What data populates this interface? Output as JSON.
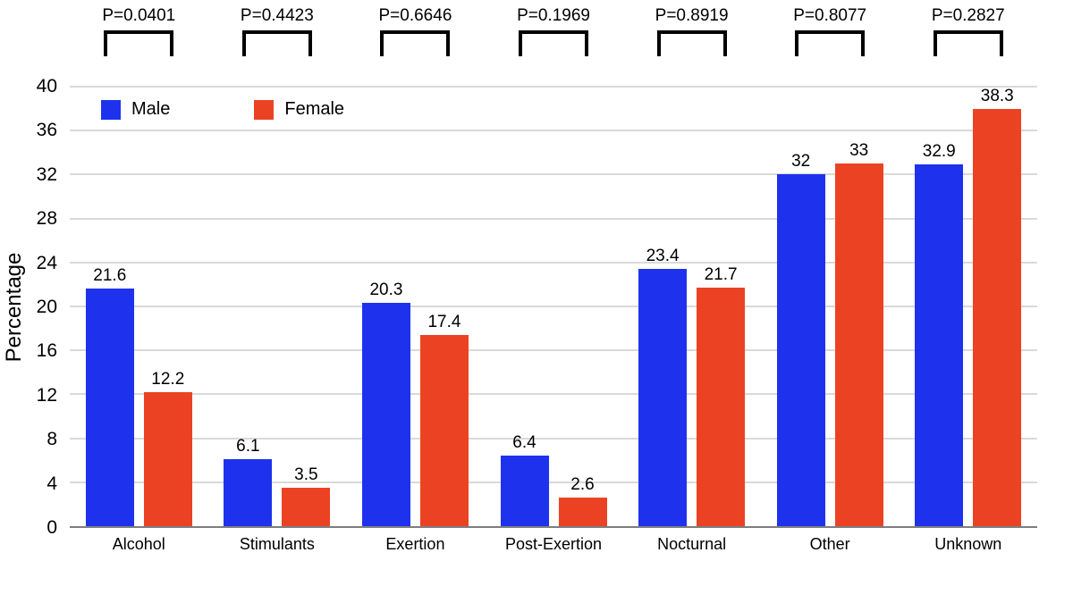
{
  "chart_data": {
    "type": "bar",
    "title": "",
    "ylabel": "Percentage",
    "xlabel": "",
    "ylim": [
      0,
      40
    ],
    "yticks": [
      0,
      4,
      8,
      12,
      16,
      20,
      24,
      28,
      32,
      36,
      40
    ],
    "grid": true,
    "legend_position": "top-left inside plot area",
    "categories": [
      "Alcohol",
      "Stimulants",
      "Exertion",
      "Post-Exertion",
      "Nocturnal",
      "Other",
      "Unknown"
    ],
    "series": [
      {
        "name": "Male",
        "color": "#1E32EE",
        "values": [
          21.6,
          6.1,
          20.3,
          6.4,
          23.4,
          32,
          32.9
        ],
        "value_labels": [
          "21.6",
          "6.1",
          "20.3",
          "6.4",
          "23.4",
          "32",
          "32.9"
        ]
      },
      {
        "name": "Female",
        "color": "#EC4224",
        "values": [
          12.2,
          3.5,
          17.4,
          2.6,
          21.7,
          33,
          38.3
        ],
        "value_labels": [
          "12.2",
          "3.5",
          "17.4",
          "2.6",
          "21.7",
          "33",
          "38.3"
        ]
      }
    ],
    "p_values": [
      "P=0.0401",
      "P=0.4423",
      "P=0.6646",
      "P=0.1969",
      "P=0.8919",
      "P=0.8077",
      "P=0.2827"
    ]
  },
  "colors": {
    "male": "#1E32EE",
    "female": "#EC4224",
    "gridline": "#D9D9D9",
    "axis_line": "#7E7E7E",
    "text": "#000000",
    "background": "#FFFFFF"
  }
}
